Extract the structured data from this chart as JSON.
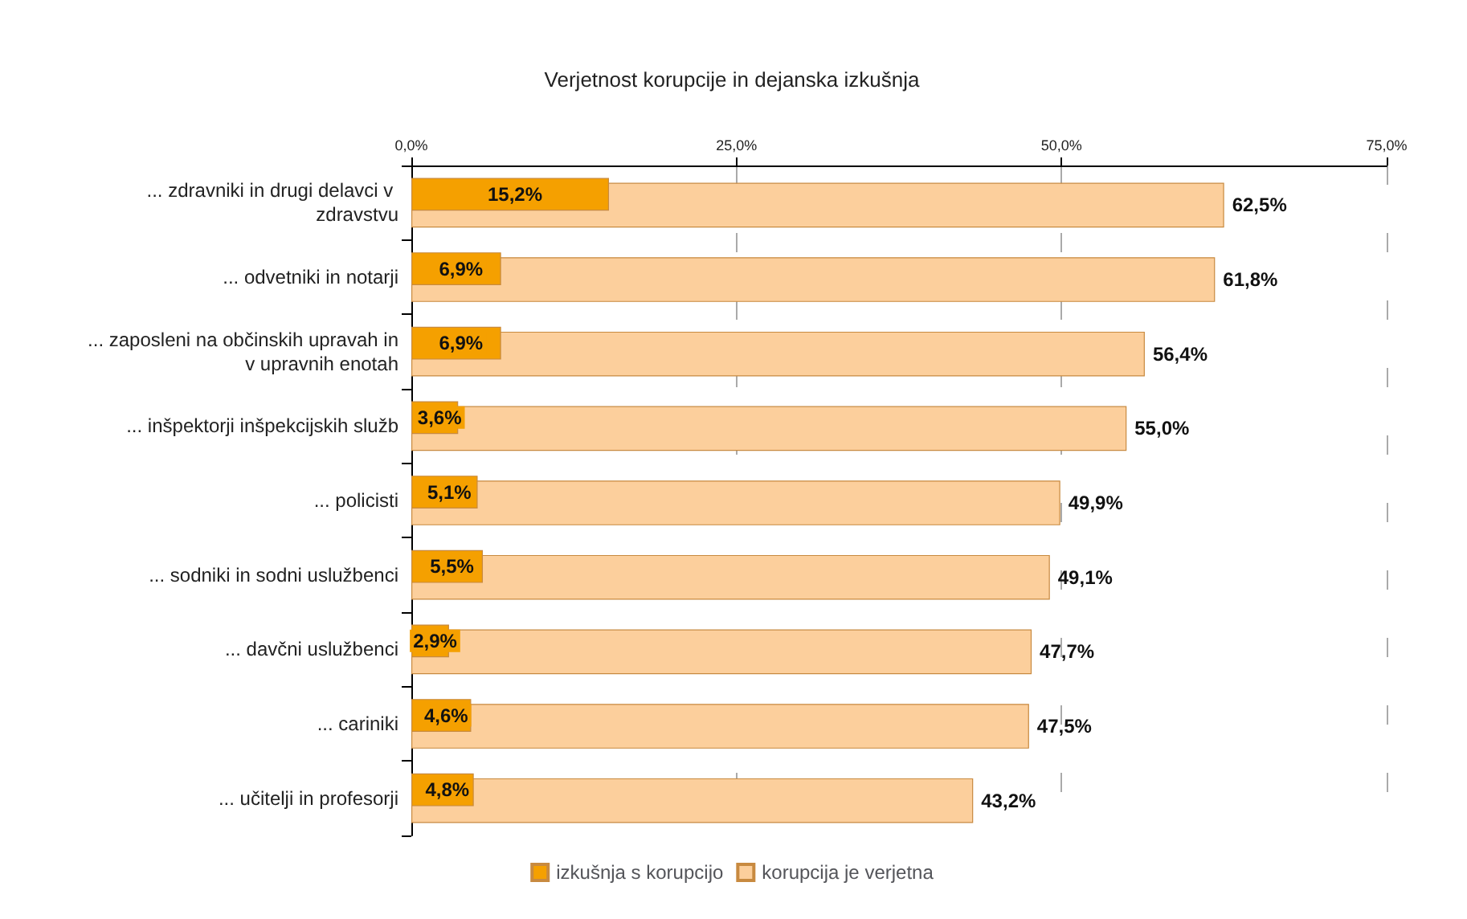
{
  "chart_data": {
    "type": "bar",
    "orientation": "horizontal",
    "title": "Verjetnost korupcije in dejanska izkušnja",
    "categories": [
      "... zdravniki in drugi delavci v zdravstvu",
      "... odvetniki in notarji",
      "... zaposleni na občinskih upravah in v upravnih enotah",
      "... inšpektorji inšpekcijskih služb",
      "... policisti",
      "... sodniki in sodni uslužbenci",
      "... davčni uslužbenci",
      "... cariniki",
      "... učitelji in profesorji"
    ],
    "series": [
      {
        "name": "izkušnja s korupcijo",
        "color": "#f5a000",
        "values": [
          15.2,
          6.9,
          6.9,
          3.6,
          5.1,
          5.5,
          2.9,
          4.6,
          4.8
        ],
        "value_labels": [
          "15,2%",
          "6,9%",
          "6,9%",
          "3,6%",
          "5,1%",
          "5,5%",
          "2,9%",
          "4,6%",
          "4,8%"
        ]
      },
      {
        "name": "korupcija je verjetna",
        "color": "#fccf9c",
        "values": [
          62.5,
          61.8,
          56.4,
          55.0,
          49.9,
          49.1,
          47.7,
          47.5,
          43.2
        ],
        "value_labels": [
          "62,5%",
          "61,8%",
          "56,4%",
          "55,0%",
          "49,9%",
          "49,1%",
          "47,7%",
          "47,5%",
          "43,2%"
        ]
      }
    ],
    "xlim": [
      0,
      75
    ],
    "xticks": [
      {
        "value": 0,
        "label": "0,0%"
      },
      {
        "value": 25,
        "label": "25,0%"
      },
      {
        "value": 50,
        "label": "50,0%"
      },
      {
        "value": 75,
        "label": "75,0%"
      }
    ],
    "grid": "x",
    "legend": "bottom"
  }
}
